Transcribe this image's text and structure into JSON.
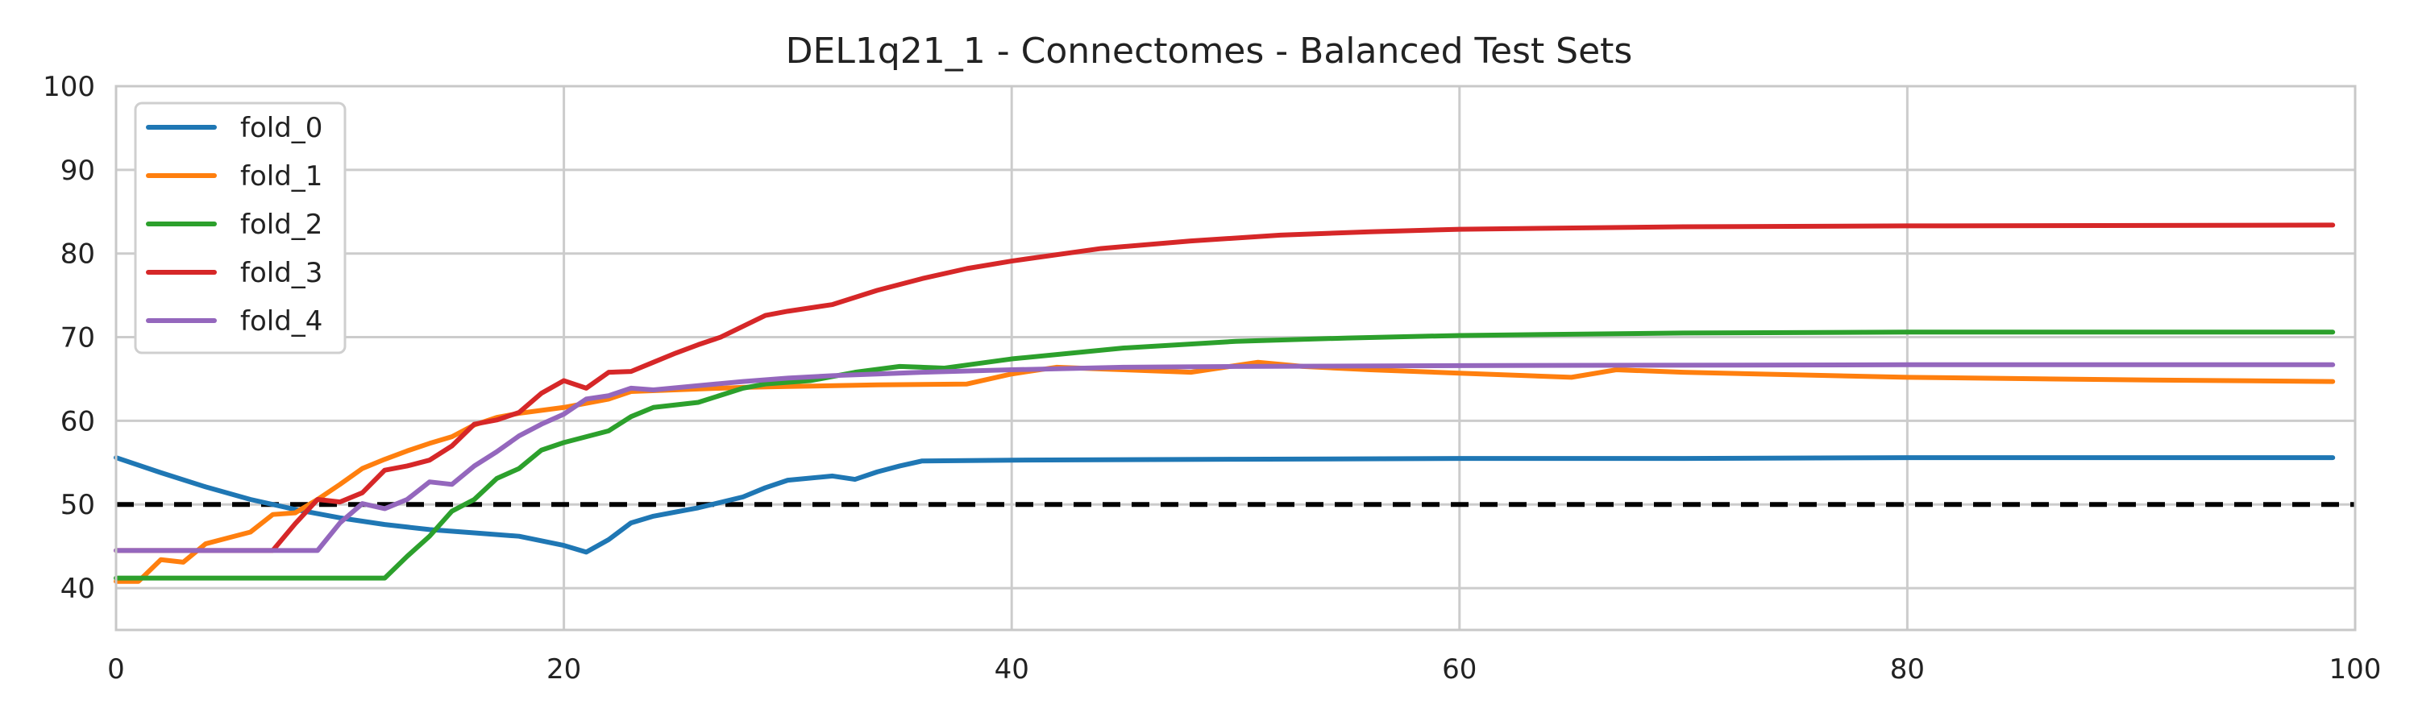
{
  "chart_data": {
    "type": "line",
    "title": "DEL1q21_1 - Connectomes - Balanced Test Sets",
    "xlabel": "",
    "ylabel": "",
    "xlim": [
      0,
      100
    ],
    "ylim": [
      35,
      100
    ],
    "xticks": [
      0,
      20,
      40,
      60,
      80,
      100
    ],
    "yticks": [
      40,
      50,
      60,
      70,
      80,
      90,
      100
    ],
    "grid": true,
    "legend_position": "top-left",
    "reference_line": {
      "y": 50,
      "style": "dashed",
      "color": "#000000"
    },
    "series": [
      {
        "name": "fold_0",
        "color": "#1f77b4",
        "points": [
          [
            0,
            55.6
          ],
          [
            2,
            53.8
          ],
          [
            4,
            52.1
          ],
          [
            6,
            50.6
          ],
          [
            8,
            49.4
          ],
          [
            10,
            48.4
          ],
          [
            12,
            47.6
          ],
          [
            14,
            47.0
          ],
          [
            16,
            46.6
          ],
          [
            18,
            46.2
          ],
          [
            20,
            45.1
          ],
          [
            21,
            44.3
          ],
          [
            22,
            45.8
          ],
          [
            23,
            47.8
          ],
          [
            24,
            48.6
          ],
          [
            26,
            49.6
          ],
          [
            28,
            50.9
          ],
          [
            29,
            52.0
          ],
          [
            30,
            52.9
          ],
          [
            32,
            53.4
          ],
          [
            33,
            53.0
          ],
          [
            34,
            53.9
          ],
          [
            35,
            54.6
          ],
          [
            36,
            55.2
          ],
          [
            40,
            55.3
          ],
          [
            50,
            55.4
          ],
          [
            60,
            55.5
          ],
          [
            70,
            55.5
          ],
          [
            80,
            55.6
          ],
          [
            99,
            55.6
          ]
        ]
      },
      {
        "name": "fold_1",
        "color": "#ff7f0e",
        "points": [
          [
            0,
            40.8
          ],
          [
            1,
            40.8
          ],
          [
            2,
            43.4
          ],
          [
            3,
            43.1
          ],
          [
            4,
            45.3
          ],
          [
            5,
            46.0
          ],
          [
            6,
            46.7
          ],
          [
            7,
            48.8
          ],
          [
            8,
            49.0
          ],
          [
            9,
            50.6
          ],
          [
            10,
            52.4
          ],
          [
            11,
            54.3
          ],
          [
            12,
            55.4
          ],
          [
            13,
            56.4
          ],
          [
            14,
            57.3
          ],
          [
            15,
            58.1
          ],
          [
            16,
            59.5
          ],
          [
            17,
            60.4
          ],
          [
            18,
            60.9
          ],
          [
            20,
            61.6
          ],
          [
            22,
            62.6
          ],
          [
            23,
            63.5
          ],
          [
            26,
            63.8
          ],
          [
            28,
            64.0
          ],
          [
            30,
            64.1
          ],
          [
            34,
            64.3
          ],
          [
            38,
            64.4
          ],
          [
            40,
            65.6
          ],
          [
            42,
            66.4
          ],
          [
            44,
            66.2
          ],
          [
            48,
            65.8
          ],
          [
            51,
            67.0
          ],
          [
            53,
            66.5
          ],
          [
            56,
            66.1
          ],
          [
            60,
            65.7
          ],
          [
            65,
            65.2
          ],
          [
            67,
            66.1
          ],
          [
            70,
            65.8
          ],
          [
            80,
            65.2
          ],
          [
            90,
            64.9
          ],
          [
            99,
            64.7
          ]
        ]
      },
      {
        "name": "fold_2",
        "color": "#2ca02c",
        "points": [
          [
            0,
            41.2
          ],
          [
            12,
            41.2
          ],
          [
            13,
            43.8
          ],
          [
            14,
            46.2
          ],
          [
            15,
            49.2
          ],
          [
            16,
            50.6
          ],
          [
            17,
            53.1
          ],
          [
            18,
            54.3
          ],
          [
            19,
            56.5
          ],
          [
            20,
            57.4
          ],
          [
            21,
            58.1
          ],
          [
            22,
            58.8
          ],
          [
            23,
            60.5
          ],
          [
            24,
            61.6
          ],
          [
            26,
            62.2
          ],
          [
            28,
            63.9
          ],
          [
            29,
            64.4
          ],
          [
            31,
            64.8
          ],
          [
            33,
            65.8
          ],
          [
            35,
            66.5
          ],
          [
            37,
            66.3
          ],
          [
            40,
            67.4
          ],
          [
            45,
            68.7
          ],
          [
            50,
            69.5
          ],
          [
            55,
            69.9
          ],
          [
            60,
            70.2
          ],
          [
            70,
            70.5
          ],
          [
            80,
            70.6
          ],
          [
            99,
            70.6
          ]
        ]
      },
      {
        "name": "fold_3",
        "color": "#d62728",
        "points": [
          [
            0,
            44.5
          ],
          [
            7,
            44.5
          ],
          [
            8,
            47.7
          ],
          [
            9,
            50.6
          ],
          [
            10,
            50.3
          ],
          [
            11,
            51.4
          ],
          [
            12,
            54.1
          ],
          [
            13,
            54.6
          ],
          [
            14,
            55.3
          ],
          [
            15,
            57.0
          ],
          [
            16,
            59.6
          ],
          [
            17,
            60.1
          ],
          [
            18,
            61.0
          ],
          [
            19,
            63.3
          ],
          [
            20,
            64.8
          ],
          [
            21,
            63.9
          ],
          [
            22,
            65.8
          ],
          [
            23,
            65.9
          ],
          [
            24,
            67.0
          ],
          [
            25,
            68.1
          ],
          [
            26,
            69.1
          ],
          [
            27,
            70.0
          ],
          [
            28,
            71.3
          ],
          [
            29,
            72.6
          ],
          [
            30,
            73.1
          ],
          [
            32,
            73.9
          ],
          [
            34,
            75.6
          ],
          [
            36,
            77.0
          ],
          [
            38,
            78.2
          ],
          [
            40,
            79.1
          ],
          [
            44,
            80.6
          ],
          [
            48,
            81.5
          ],
          [
            52,
            82.2
          ],
          [
            56,
            82.6
          ],
          [
            60,
            82.9
          ],
          [
            70,
            83.2
          ],
          [
            80,
            83.3
          ],
          [
            99,
            83.4
          ]
        ]
      },
      {
        "name": "fold_4",
        "color": "#9467bd",
        "points": [
          [
            0,
            44.5
          ],
          [
            9,
            44.5
          ],
          [
            10,
            47.8
          ],
          [
            11,
            50.1
          ],
          [
            12,
            49.5
          ],
          [
            13,
            50.6
          ],
          [
            14,
            52.7
          ],
          [
            15,
            52.4
          ],
          [
            16,
            54.6
          ],
          [
            17,
            56.3
          ],
          [
            18,
            58.2
          ],
          [
            19,
            59.6
          ],
          [
            20,
            60.8
          ],
          [
            21,
            62.6
          ],
          [
            22,
            63.0
          ],
          [
            23,
            63.9
          ],
          [
            24,
            63.7
          ],
          [
            26,
            64.2
          ],
          [
            28,
            64.7
          ],
          [
            30,
            65.1
          ],
          [
            32,
            65.4
          ],
          [
            34,
            65.6
          ],
          [
            36,
            65.8
          ],
          [
            40,
            66.1
          ],
          [
            45,
            66.4
          ],
          [
            50,
            66.5
          ],
          [
            60,
            66.6
          ],
          [
            80,
            66.7
          ],
          [
            99,
            66.7
          ]
        ]
      }
    ]
  }
}
